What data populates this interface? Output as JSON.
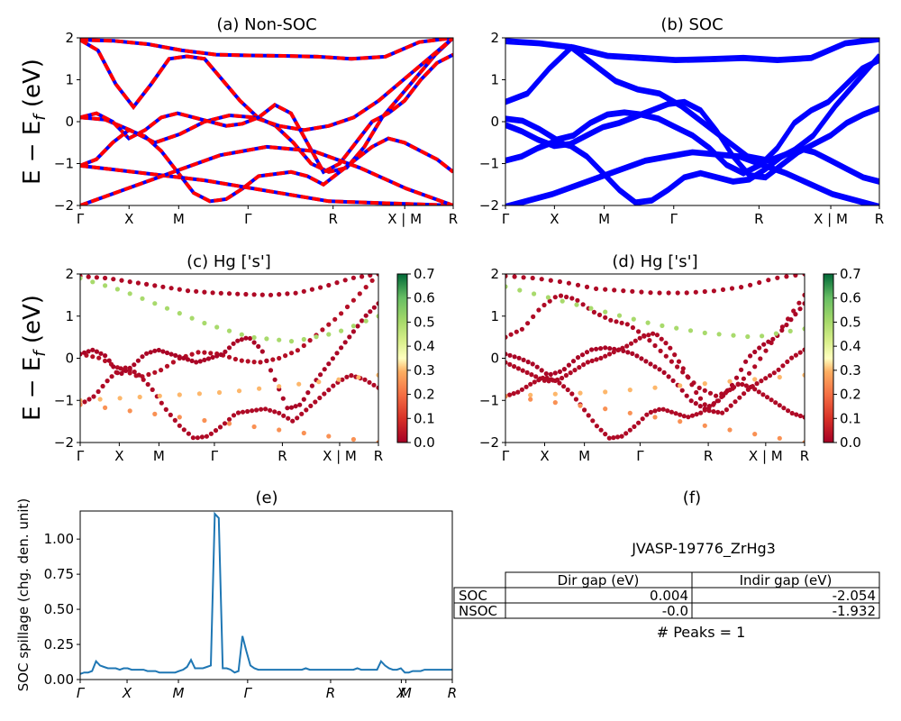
{
  "chart_data": [
    {
      "type": "line",
      "panel": "a",
      "title": "(a) Non-SOC",
      "ylabel": "E − E_f (eV)",
      "ylim": [
        -2,
        2
      ],
      "yticks": [
        "2",
        "1",
        "0",
        "−1",
        "−2"
      ],
      "xticks": [
        "Γ",
        "X",
        "M",
        "Γ",
        "R",
        "X | M",
        "R"
      ],
      "colors": [
        "#0000ff",
        "#ff0000"
      ],
      "style": "red dashed over blue",
      "series": [
        {
          "values": [
            1.95,
            1.93,
            1.85,
            1.7,
            1.6,
            1.58,
            1.57,
            1.55,
            1.5,
            1.55,
            1.9,
            2.0
          ]
        },
        {
          "values": [
            1.95,
            1.7,
            0.9,
            0.35,
            0.9,
            1.5,
            1.56,
            1.5,
            1.0,
            0.5,
            0.1,
            -0.1,
            -0.5,
            -1.0,
            -1.2,
            -1.1,
            -0.6,
            0.1,
            0.6,
            1.1,
            1.6,
            2.0
          ]
        },
        {
          "values": [
            0.1,
            0.05,
            -0.2,
            -0.5,
            -0.3,
            0.0,
            0.15,
            0.1,
            -0.1,
            -0.2,
            -0.1,
            0.1,
            0.5,
            1.0,
            1.5,
            2.0
          ]
        },
        {
          "values": [
            0.1,
            0.2,
            0.0,
            -0.4,
            -0.2,
            0.1,
            0.2,
            0.1,
            0.0,
            -0.1,
            -0.05,
            0.1,
            0.4,
            0.2,
            -0.5,
            -1.2,
            -1.0,
            -0.5,
            0.0,
            0.2,
            0.5,
            1.0,
            1.4,
            1.6
          ]
        },
        {
          "values": [
            -1.05,
            -0.9,
            -0.5,
            -0.2,
            -0.35,
            -0.7,
            -1.2,
            -1.7,
            -1.9,
            -1.85,
            -1.6,
            -1.3,
            -1.25,
            -1.2,
            -1.3,
            -1.5,
            -1.2,
            -0.9,
            -0.6,
            -0.4,
            -0.5,
            -0.7,
            -0.9,
            -1.2
          ]
        },
        {
          "values": [
            -1.05,
            -1.4,
            -1.9,
            -2.0
          ]
        },
        {
          "values": [
            -2.0,
            -1.6,
            -1.2,
            -0.8,
            -0.6,
            -0.7,
            -1.1,
            -1.6,
            -2.0
          ]
        }
      ]
    },
    {
      "type": "line",
      "panel": "b",
      "title": "(b) SOC",
      "ylim": [
        -2,
        2
      ],
      "yticks": [
        "2",
        "1",
        "0",
        "−1",
        "−2"
      ],
      "xticks": [
        "Γ",
        "X",
        "M",
        "Γ",
        "R",
        "X | M",
        "R"
      ],
      "colors": [
        "#0000ff"
      ],
      "series": [
        {
          "values": [
            1.95,
            1.9,
            1.8,
            1.6,
            1.55,
            1.5,
            1.52,
            1.55,
            1.5,
            1.55,
            1.9,
            2.0
          ]
        },
        {
          "values": [
            0.5,
            0.7,
            1.3,
            1.8,
            1.4,
            1.0,
            0.8,
            0.7,
            0.4,
            0.0,
            -0.4,
            -0.8,
            -0.9,
            -0.7,
            -0.3,
            0.4,
            1.0,
            1.6
          ]
        },
        {
          "values": [
            0.1,
            0.05,
            -0.15,
            -0.4,
            -0.3,
            0.0,
            0.2,
            0.25,
            0.2,
            0.1,
            -0.1,
            -0.3,
            -0.6,
            -1.0,
            -1.2,
            -1.0,
            -0.6,
            0.0,
            0.3,
            0.5,
            0.9,
            1.3,
            1.5
          ]
        },
        {
          "values": [
            -0.05,
            -0.2,
            -0.4,
            -0.55,
            -0.5,
            -0.3,
            -0.1,
            0.0,
            0.15,
            0.3,
            0.45,
            0.5,
            0.3,
            -0.2,
            -0.8,
            -1.25,
            -1.3,
            -1.0,
            -0.7,
            -0.5,
            -0.3,
            0.0,
            0.2,
            0.35
          ]
        },
        {
          "values": [
            -0.9,
            -0.8,
            -0.6,
            -0.45,
            -0.55,
            -0.8,
            -1.2,
            -1.6,
            -1.9,
            -1.85,
            -1.6,
            -1.3,
            -1.2,
            -1.3,
            -1.4,
            -1.35,
            -1.1,
            -0.8,
            -0.6,
            -0.7,
            -0.9,
            -1.1,
            -1.3,
            -1.4
          ]
        },
        {
          "values": [
            -2.0,
            -1.7,
            -1.3,
            -0.9,
            -0.7,
            -0.8,
            -1.2,
            -1.7,
            -2.0
          ]
        }
      ]
    },
    {
      "type": "scatter",
      "panel": "c",
      "title": "(c)  Hg ['s']",
      "ylabel": "E − E_f (eV)",
      "ylim": [
        -2,
        2
      ],
      "yticks": [
        "2",
        "1",
        "0",
        "−1",
        "−2"
      ],
      "xticks": [
        "Γ",
        "X",
        "M",
        "Γ",
        "R",
        "X | M",
        "R"
      ],
      "colorbar": {
        "range": [
          0.0,
          0.7
        ],
        "ticks": [
          "0.7",
          "0.6",
          "0.5",
          "0.4",
          "0.3",
          "0.2",
          "0.1",
          "0.0"
        ],
        "colormap": "RdYlGn"
      },
      "series": [
        {
          "values": [
            1.95,
            1.9,
            1.8,
            1.7,
            1.6,
            1.55,
            1.52,
            1.5,
            1.55,
            1.7,
            1.9,
            2.0
          ],
          "weight": 0.02
        },
        {
          "values": [
            0.1,
            0.0,
            -0.25,
            -0.45,
            -0.3,
            0.0,
            0.15,
            0.1,
            -0.05,
            -0.1,
            0.0,
            0.2,
            0.6,
            1.0,
            1.5,
            2.0
          ],
          "weight": 0.03
        },
        {
          "values": [
            0.1,
            0.2,
            0.05,
            -0.4,
            -0.2,
            0.1,
            0.2,
            0.1,
            0.0,
            -0.1,
            0.0,
            0.1,
            0.4,
            0.5,
            0.2,
            -0.5,
            -1.2,
            -1.1,
            -0.6,
            -0.2,
            0.2,
            0.6,
            1.0,
            1.3
          ],
          "weight": 0.01
        },
        {
          "values": [
            -1.1,
            -0.9,
            -0.5,
            -0.2,
            -0.35,
            -0.7,
            -1.2,
            -1.6,
            -1.9,
            -1.85,
            -1.6,
            -1.3,
            -1.25,
            -1.2,
            -1.3,
            -1.5,
            -1.2,
            -0.9,
            -0.6,
            -0.4,
            -0.5,
            -0.7
          ],
          "weight": 0.02
        },
        {
          "values": [
            1.9,
            1.6,
            1.2,
            0.8,
            0.5,
            0.4,
            0.6,
            1.0
          ],
          "weight": 0.5
        },
        {
          "values": [
            -1.0,
            -0.9,
            -0.8,
            -0.6,
            -0.4
          ],
          "weight": 0.3
        },
        {
          "values": [
            -1.1,
            -1.4,
            -1.7,
            -2.0
          ],
          "weight": 0.25
        }
      ]
    },
    {
      "type": "scatter",
      "panel": "d",
      "title": "(d) Hg ['s']",
      "ylim": [
        -2,
        2
      ],
      "yticks": [
        "2",
        "1",
        "0",
        "−1",
        "−2"
      ],
      "xticks": [
        "Γ",
        "X",
        "M",
        "Γ",
        "R",
        "X | M",
        "R"
      ],
      "colorbar": {
        "range": [
          0.0,
          0.7
        ],
        "ticks": [
          "0.7",
          "0.6",
          "0.5",
          "0.4",
          "0.3",
          "0.2",
          "0.1",
          "0.0"
        ],
        "colormap": "RdYlGn"
      },
      "series": [
        {
          "values": [
            1.95,
            1.9,
            1.8,
            1.65,
            1.6,
            1.55,
            1.55,
            1.6,
            1.7,
            1.9,
            2.0
          ],
          "weight": 0.02
        },
        {
          "values": [
            0.5,
            0.7,
            1.2,
            1.5,
            1.4,
            1.1,
            0.9,
            0.8,
            0.5,
            0.1,
            -0.3,
            -0.7,
            -0.9,
            -0.7,
            -0.3,
            0.3,
            0.9,
            1.5
          ],
          "weight": 0.02
        },
        {
          "values": [
            0.1,
            0.0,
            -0.15,
            -0.4,
            -0.3,
            0.0,
            0.2,
            0.25,
            0.2,
            0.1,
            -0.1,
            -0.3,
            -0.6,
            -1.0,
            -1.2,
            -1.0,
            -0.6,
            0.0,
            0.3,
            0.5,
            0.9,
            1.3
          ],
          "weight": 0.01
        },
        {
          "values": [
            -0.1,
            -0.25,
            -0.4,
            -0.55,
            -0.5,
            -0.3,
            -0.1,
            0.0,
            0.15,
            0.3,
            0.5,
            0.6,
            0.3,
            -0.2,
            -0.8,
            -1.25,
            -1.3,
            -1.0,
            -0.7,
            -0.5,
            -0.3,
            0.0,
            0.2
          ],
          "weight": 0.02
        },
        {
          "values": [
            -0.9,
            -0.8,
            -0.6,
            -0.45,
            -0.55,
            -0.8,
            -1.2,
            -1.6,
            -1.9,
            -1.85,
            -1.6,
            -1.3,
            -1.2,
            -1.3,
            -1.4,
            -1.3,
            -1.1,
            -0.8,
            -0.6,
            -0.7,
            -0.9,
            -1.1,
            -1.3,
            -1.4
          ],
          "weight": 0.02
        },
        {
          "values": [
            1.7,
            1.4,
            1.1,
            0.8,
            0.6,
            0.5,
            0.7
          ],
          "weight": 0.5
        },
        {
          "values": [
            -0.9,
            -0.8,
            -0.6,
            -0.4
          ],
          "weight": 0.3
        },
        {
          "values": [
            -0.9,
            -1.2,
            -1.6,
            -2.0
          ],
          "weight": 0.25
        }
      ]
    },
    {
      "type": "line",
      "panel": "e",
      "title": "(e)",
      "ylabel": "SOC spillage (chg. den. unit)",
      "ylim": [
        0,
        1.2
      ],
      "yticks": [
        "1.00",
        "0.75",
        "0.50",
        "0.25",
        "0.00"
      ],
      "xticks": [
        "Γ",
        "X",
        "M",
        "Γ",
        "R",
        "X",
        "M",
        "R"
      ],
      "colors": [
        "#1f77b4"
      ],
      "series": [
        {
          "values": [
            0.04,
            0.05,
            0.05,
            0.06,
            0.13,
            0.1,
            0.09,
            0.08,
            0.08,
            0.08,
            0.07,
            0.08,
            0.08,
            0.07,
            0.07,
            0.07,
            0.07,
            0.06,
            0.06,
            0.06,
            0.05,
            0.05,
            0.05,
            0.05,
            0.05,
            0.06,
            0.07,
            0.09,
            0.14,
            0.08,
            0.08,
            0.08,
            0.09,
            0.1,
            1.18,
            1.15,
            0.08,
            0.08,
            0.07,
            0.05,
            0.06,
            0.31,
            0.2,
            0.1,
            0.08,
            0.07,
            0.07,
            0.07,
            0.07,
            0.07,
            0.07,
            0.07,
            0.07,
            0.07,
            0.07,
            0.07,
            0.07,
            0.08,
            0.07,
            0.07,
            0.07,
            0.07,
            0.07,
            0.07,
            0.07,
            0.07,
            0.07,
            0.07,
            0.07,
            0.07,
            0.08,
            0.07,
            0.07,
            0.07,
            0.07,
            0.07,
            0.13,
            0.1,
            0.08,
            0.07,
            0.07,
            0.08,
            0.05,
            0.05,
            0.06,
            0.06,
            0.06,
            0.07,
            0.07,
            0.07,
            0.07,
            0.07,
            0.07,
            0.07,
            0.07
          ]
        }
      ]
    },
    {
      "type": "table",
      "panel": "f",
      "title": "(f)",
      "subtitle": "JVASP-19776_ZrHg3",
      "columns": [
        "Dir gap (eV)",
        "Indir gap (eV)"
      ],
      "rows": [
        {
          "label": "SOC",
          "cells": [
            "0.004",
            "-2.054"
          ]
        },
        {
          "label": "NSOC",
          "cells": [
            "-0.0",
            "-1.932"
          ]
        }
      ],
      "note": "# Peaks = 1"
    }
  ]
}
